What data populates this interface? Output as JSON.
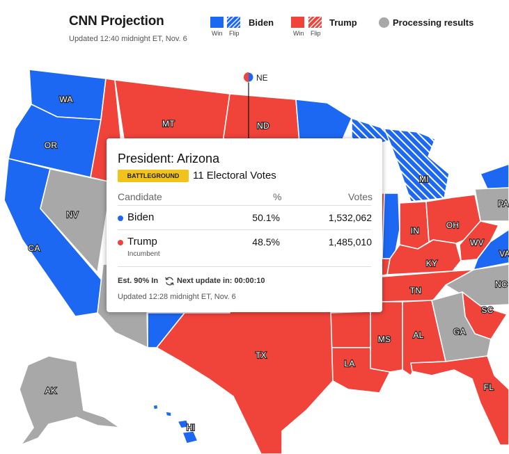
{
  "header": {
    "title": "CNN Projection",
    "updated": "Updated 12:40 midnight ET, Nov. 6",
    "legend": {
      "biden_label": "Biden",
      "trump_label": "Trump",
      "processing_label": "Processing results",
      "win_label": "Win",
      "flip_label": "Flip"
    }
  },
  "colors": {
    "biden": "#1d68f2",
    "trump": "#f0433a",
    "processing": "#a8a8a8",
    "battleground": "#f3c21b"
  },
  "map": {
    "state_labels": {
      "wa": "WA",
      "or": "OR",
      "ca": "CA",
      "nv": "NV",
      "mt": "MT",
      "nd": "ND",
      "ne": "NE",
      "mi": "MI",
      "pa": "PA",
      "in": "IN",
      "oh": "OH",
      "wv": "WV",
      "va": "VA",
      "ky": "KY",
      "nc": "NC",
      "tn": "TN",
      "sc": "SC",
      "ga": "GA",
      "al": "AL",
      "ms": "MS",
      "la": "LA",
      "tx": "TX",
      "fl": "FL",
      "ak": "AK",
      "hi": "HI"
    }
  },
  "popup": {
    "title": "President: Arizona",
    "badge": "BATTLEGROUND",
    "electoral": "11 Electoral Votes",
    "col_candidate": "Candidate",
    "col_pct": "%",
    "col_votes": "Votes",
    "rows": [
      {
        "name": "Biden",
        "pct": "50.1%",
        "votes": "1,532,062",
        "note": ""
      },
      {
        "name": "Trump",
        "pct": "48.5%",
        "votes": "1,485,010",
        "note": "Incumbent"
      }
    ],
    "est": "Est. 90% In",
    "next_update": "Next update in: 00:00:10",
    "updated": "Updated 12:28 midnight ET, Nov. 6"
  }
}
